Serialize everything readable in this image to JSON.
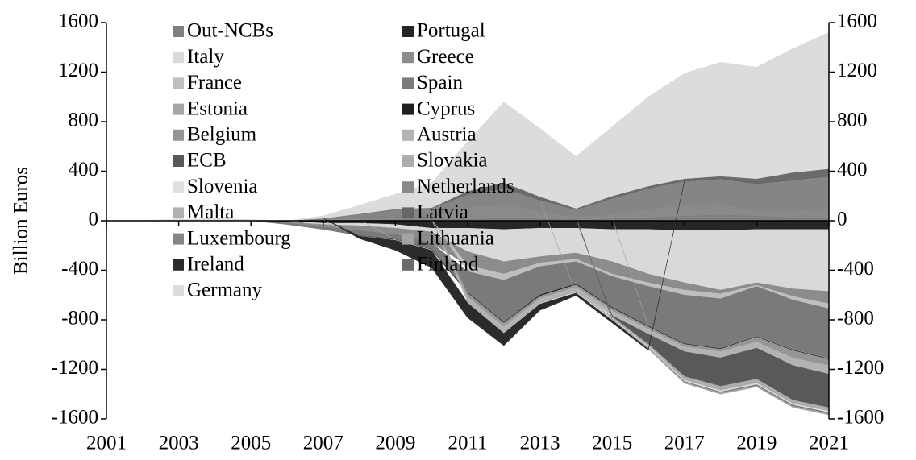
{
  "chart_data": {
    "type": "stacked_area",
    "ylabel": "Billion Euros",
    "x": [
      2001,
      2002,
      2003,
      2004,
      2005,
      2006,
      2007,
      2008,
      2009,
      2010,
      2011,
      2012,
      2013,
      2014,
      2015,
      2016,
      2017,
      2018,
      2019,
      2020,
      2021
    ],
    "xlim": [
      2001,
      2021
    ],
    "xticks": [
      2001,
      2003,
      2005,
      2007,
      2009,
      2011,
      2013,
      2015,
      2017,
      2019,
      2021
    ],
    "ylim": [
      -1600,
      1600
    ],
    "yticks": [
      -1600,
      -1200,
      -800,
      -400,
      0,
      400,
      800,
      1200,
      1600
    ],
    "y2lim": [
      -1600,
      1600
    ],
    "y2ticks": [
      -1600,
      -1200,
      -800,
      -400,
      0,
      400,
      800,
      1200,
      1600
    ],
    "series": [
      {
        "name": "Out-NCBs",
        "color": "#7f7f7f",
        "values": [
          0,
          0,
          0,
          0,
          0,
          0,
          0,
          10,
          10,
          10,
          10,
          20,
          15,
          10,
          20,
          30,
          40,
          50,
          40,
          30,
          30
        ]
      },
      {
        "name": "Portugal",
        "color": "#262626",
        "values": [
          0,
          0,
          0,
          0,
          0,
          -10,
          -20,
          -20,
          -30,
          -60,
          -60,
          -70,
          -60,
          -60,
          -70,
          -70,
          -80,
          -80,
          -70,
          -70,
          -70
        ]
      },
      {
        "name": "Italy",
        "color": "#d9d9d9",
        "values": [
          0,
          0,
          0,
          0,
          0,
          0,
          -10,
          -20,
          -30,
          -30,
          -190,
          -260,
          -230,
          -200,
          -260,
          -360,
          -420,
          -480,
          -430,
          -480,
          -500
        ]
      },
      {
        "name": "Greece",
        "color": "#8c8c8c",
        "values": [
          0,
          0,
          0,
          0,
          0,
          -10,
          -20,
          -40,
          -50,
          -90,
          -110,
          -100,
          -50,
          -50,
          -100,
          -70,
          -60,
          -30,
          -20,
          -60,
          -100
        ]
      },
      {
        "name": "France",
        "color": "#bfbfbf",
        "values": [
          0,
          0,
          0,
          0,
          0,
          0,
          0,
          0,
          0,
          0,
          -50,
          -50,
          -30,
          -20,
          -20,
          -30,
          -40,
          -40,
          -10,
          -30,
          -40
        ]
      },
      {
        "name": "Spain",
        "color": "#7a7a7a",
        "values": [
          0,
          0,
          0,
          0,
          0,
          -10,
          -20,
          -40,
          -40,
          -50,
          -170,
          -340,
          -230,
          -180,
          -250,
          -320,
          -390,
          -400,
          -400,
          -400,
          -400
        ]
      },
      {
        "name": "Estonia",
        "color": "#a6a6a6",
        "values": [
          0,
          0,
          0,
          0,
          0,
          0,
          0,
          0,
          0,
          0,
          0,
          0,
          0,
          0,
          0,
          -1,
          -2,
          -2,
          -3,
          -3,
          -4
        ]
      },
      {
        "name": "Cyprus",
        "color": "#1f1f1f",
        "values": [
          0,
          0,
          0,
          0,
          0,
          0,
          0,
          -2,
          -3,
          -3,
          -5,
          -5,
          -8,
          -7,
          -6,
          -5,
          -5,
          -5,
          -5,
          -5,
          -5
        ]
      },
      {
        "name": "Belgium",
        "color": "#969696",
        "values": [
          0,
          0,
          0,
          0,
          0,
          0,
          0,
          0,
          0,
          0,
          -30,
          -30,
          -20,
          -20,
          -20,
          -20,
          -20,
          -20,
          -40,
          -60,
          -50
        ]
      },
      {
        "name": "Austria",
        "color": "#b3b3b3",
        "values": [
          0,
          0,
          0,
          0,
          0,
          0,
          0,
          0,
          0,
          0,
          -40,
          -40,
          -30,
          -30,
          -40,
          -40,
          -40,
          -50,
          -50,
          -60,
          -70
        ]
      },
      {
        "name": "ECB",
        "color": "#595959",
        "values": [
          0,
          0,
          0,
          0,
          0,
          0,
          0,
          0,
          0,
          0,
          0,
          0,
          0,
          0,
          -10,
          -80,
          -200,
          -230,
          -250,
          -280,
          -270
        ]
      },
      {
        "name": "Slovakia",
        "color": "#adadad",
        "values": [
          0,
          0,
          0,
          0,
          0,
          0,
          0,
          0,
          -2,
          -3,
          -5,
          -8,
          -10,
          -10,
          -15,
          -20,
          -30,
          -35,
          -35,
          -30,
          -30
        ]
      },
      {
        "name": "Slovenia",
        "color": "#e0e0e0",
        "values": [
          0,
          0,
          0,
          0,
          0,
          0,
          0,
          -2,
          -3,
          -3,
          -4,
          -5,
          -5,
          -5,
          -6,
          -8,
          -10,
          -10,
          -10,
          -10,
          -10
        ]
      },
      {
        "name": "Netherlands",
        "color": "#8a8a8a",
        "values": [
          0,
          0,
          0,
          0,
          0,
          0,
          10,
          20,
          20,
          20,
          100,
          120,
          60,
          20,
          30,
          60,
          90,
          90,
          40,
          50,
          70
        ]
      },
      {
        "name": "Malta",
        "color": "#b0b0b0",
        "values": [
          0,
          0,
          0,
          0,
          0,
          0,
          0,
          0,
          0,
          0,
          0,
          0,
          0,
          0,
          -1,
          -1,
          -1,
          -1,
          -1,
          -1,
          -1
        ]
      },
      {
        "name": "Latvia",
        "color": "#666666",
        "values": [
          0,
          0,
          0,
          0,
          0,
          0,
          0,
          0,
          0,
          0,
          0,
          0,
          0,
          0,
          -2,
          -3,
          -4,
          -5,
          -6,
          -6,
          -6
        ]
      },
      {
        "name": "Luxembourg",
        "color": "#858585",
        "values": [
          0,
          0,
          0,
          0,
          0,
          0,
          10,
          20,
          60,
          70,
          100,
          120,
          90,
          60,
          130,
          170,
          190,
          200,
          220,
          250,
          260
        ]
      },
      {
        "name": "Lithuania",
        "color": "#a3a3a3",
        "values": [
          0,
          0,
          0,
          0,
          0,
          0,
          0,
          0,
          0,
          0,
          0,
          0,
          0,
          -2,
          -5,
          -8,
          -10,
          -12,
          -12,
          -12,
          -12
        ]
      },
      {
        "name": "Ireland",
        "color": "#2b2b2b",
        "values": [
          0,
          0,
          0,
          0,
          0,
          0,
          0,
          -20,
          -80,
          -140,
          -120,
          -100,
          -50,
          -20,
          -20,
          -10,
          0,
          0,
          0,
          0,
          0
        ]
      },
      {
        "name": "Finland",
        "color": "#6b6b6b",
        "values": [
          0,
          0,
          0,
          0,
          0,
          0,
          0,
          5,
          5,
          5,
          30,
          50,
          30,
          10,
          20,
          20,
          20,
          20,
          40,
          60,
          60
        ]
      },
      {
        "name": "Germany",
        "color": "#dcdcdc",
        "values": [
          0,
          5,
          10,
          20,
          10,
          0,
          20,
          70,
          120,
          200,
          400,
          650,
          550,
          420,
          560,
          720,
          850,
          920,
          900,
          1000,
          1100
        ]
      }
    ]
  }
}
